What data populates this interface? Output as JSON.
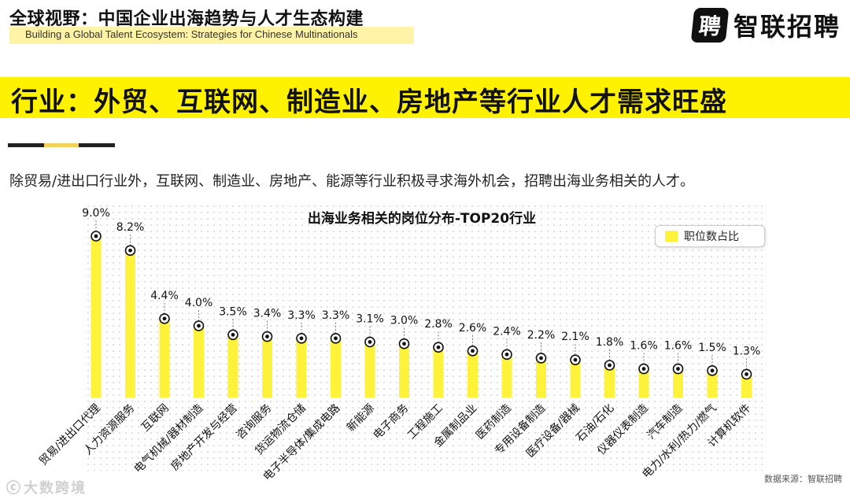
{
  "header": {
    "title": "全球视野：中国企业出海趋势与人才生态构建",
    "subtitle": "Building a Global Talent Ecosystem: Strategies for Chinese Multinationals",
    "logo_mark": "聘",
    "logo_text": "智联招聘"
  },
  "headline": "行业：外贸、互联网、制造业、房地产等行业人才需求旺盛",
  "description": "除贸易/进出口行业外，互联网、制造业、房地产、能源等行业积极寻求海外机会，招聘出海业务相关的人才。",
  "colors": {
    "accent_yellow": "#fff200",
    "bar_fill": "#fff23a",
    "dark": "#111111"
  },
  "chart_data": {
    "type": "bar",
    "title": "出海业务相关的岗位分布-TOP20行业",
    "legend_position": "top-right",
    "series": [
      {
        "name": "职位数占比",
        "values": [
          9.0,
          8.2,
          4.4,
          4.0,
          3.5,
          3.4,
          3.3,
          3.3,
          3.1,
          3.0,
          2.8,
          2.6,
          2.4,
          2.2,
          2.1,
          1.8,
          1.6,
          1.6,
          1.5,
          1.3
        ],
        "labels": [
          "9.0%",
          "8.2%",
          "4.4%",
          "4.0%",
          "3.5%",
          "3.4%",
          "3.3%",
          "3.3%",
          "3.1%",
          "3.0%",
          "2.8%",
          "2.6%",
          "2.4%",
          "2.2%",
          "2.1%",
          "1.8%",
          "1.6%",
          "1.6%",
          "1.5%",
          "1.3%"
        ]
      }
    ],
    "categories": [
      "贸易/进出口代理",
      "人力资源服务",
      "互联网",
      "电气机械/器材制造",
      "房地产开发与经营",
      "咨询服务",
      "货运物流仓储",
      "电子半导体/集成电路",
      "新能源",
      "电子商务",
      "工程施工",
      "金属制品业",
      "医药制造",
      "专用设备制造",
      "医疗设备/器械",
      "石油/石化",
      "仪器仪表制造",
      "汽车制造",
      "电力/水利/热力/燃气",
      "计算机软件"
    ],
    "ylim": [
      0,
      10
    ],
    "grid": "dotted"
  },
  "source": "数据来源：智联招聘",
  "watermark": "大数跨境",
  "watermark_glyph": "ⓒ"
}
